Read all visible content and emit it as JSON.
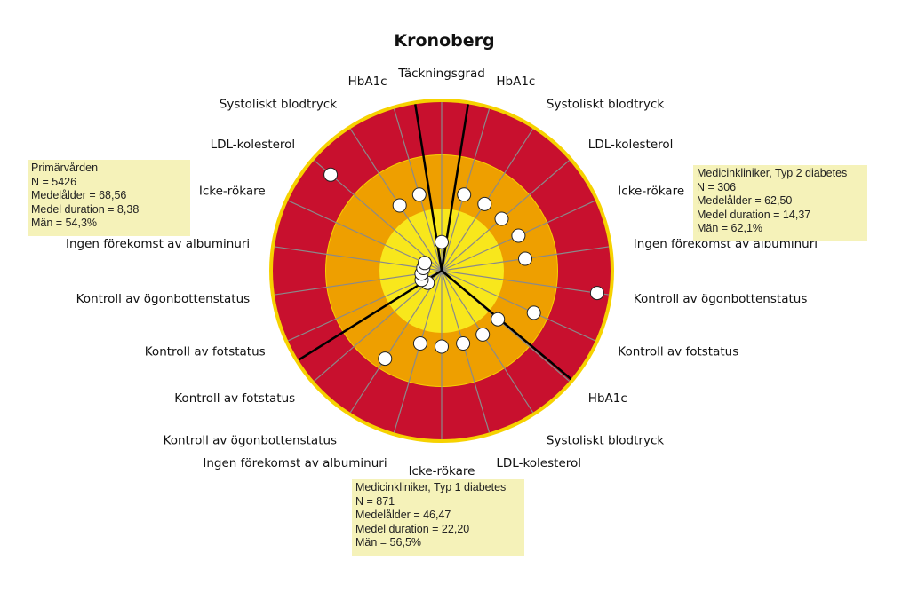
{
  "chart_data": {
    "type": "radar",
    "title": "Kronoberg",
    "scale": {
      "min": 0,
      "max": 1,
      "bands": [
        "yellow",
        "orange",
        "red"
      ]
    },
    "colors": {
      "red": "#c8102e",
      "orange": "#ee9f00",
      "yellow": "#f8e71c",
      "rim": "#f6d200",
      "spoke": "#8a8a8a",
      "separator": "#000000"
    },
    "axes": [
      "Täckningsgrad",
      "HbA1c",
      "Systoliskt blodtryck",
      "LDL-kolesterol",
      "Icke-rökare",
      "Ingen förekomst av albuminuri",
      "Kontroll av ögonbottenstatus",
      "Kontroll av fotstatus",
      "HbA1c",
      "Systoliskt blodtryck",
      "LDL-kolesterol",
      "Icke-rökare",
      "Ingen förekomst av albuminuri",
      "Kontroll av ögonbottenstatus",
      "Kontroll av fotstatus",
      "Kontroll av fotstatus",
      "Kontroll av ögonbottenstatus",
      "Ingen förekomst av albuminuri",
      "Icke-rökare",
      "LDL-kolesterol",
      "Systoliskt blodtryck",
      "HbA1c"
    ],
    "values": [
      0.17,
      0.47,
      0.47,
      0.47,
      0.5,
      0.5,
      0.93,
      0.6,
      0.44,
      0.45,
      0.45,
      0.45,
      0.45,
      0.62,
      0.11,
      0.13,
      0.12,
      0.11,
      0.11,
      0.87,
      0.46,
      0.47
    ],
    "groups": [
      {
        "name": "Medicinkliniker, Typ 2 diabetes",
        "lines": [
          "Medicinkliniker, Typ 2 diabetes",
          "N = 306",
          "Medelålder = 62,50",
          "Medel duration = 14,37",
          "Män = 62,1%"
        ]
      },
      {
        "name": "Medicinkliniker, Typ 1 diabetes",
        "lines": [
          "Medicinkliniker, Typ 1 diabetes",
          "N = 871",
          "Medelålder = 46,47",
          "Medel duration = 22,20",
          "Män = 56,5%"
        ]
      },
      {
        "name": "Primärvården",
        "lines": [
          "Primärvården",
          "N = 5426",
          "Medelålder = 68,56",
          "Medel duration = 8,38",
          "Män = 54,3%"
        ]
      }
    ]
  }
}
